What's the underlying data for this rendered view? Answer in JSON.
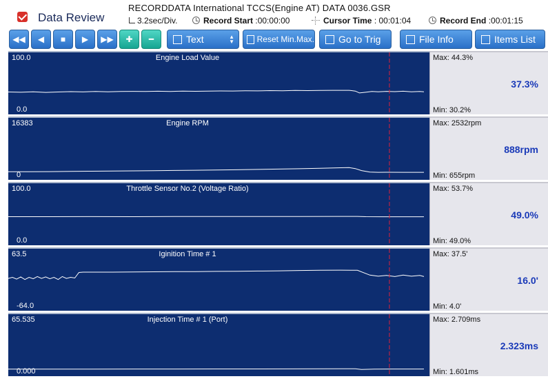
{
  "header": {
    "app_title": "Data Review",
    "filename": "RECORDDATA  International  TCCS(Engine AT)  DATA  0036.GSR",
    "div_value": "3.2sec/Div.",
    "record_start_label": "Record Start",
    "record_start_value": ":00:00:00",
    "cursor_time_label": "Cursor Time",
    "cursor_time_value": ": 00:01:04",
    "record_end_label": "Record End",
    "record_end_value": ":00:01:15"
  },
  "toolbar": {
    "text_label": "Text",
    "reset_label": "Reset Min.Max.",
    "goto_label": "Go to Trig",
    "fileinfo_label": "File Info",
    "items_label": "Items List",
    "rewind_glyph": "◀◀",
    "back_glyph": "◀",
    "stop_glyph": "■",
    "play_glyph": "▶",
    "ff_glyph": "▶▶",
    "plus_glyph": "✚",
    "minus_glyph": "━"
  },
  "colors": {
    "plot_bg": "#0d2d70",
    "trace": "#ffffff",
    "cursor": "#e0203a",
    "value": "#1a3ab8"
  },
  "cursor_fraction": 0.905,
  "panels": [
    {
      "title": "Engine Load Value",
      "ymax": "100.0",
      "ymin": "0.0",
      "smax": "Max:  44.3%",
      "smin": "Min:   30.2%",
      "current": "37.3%",
      "series": [
        [
          0,
          36
        ],
        [
          0.03,
          35.5
        ],
        [
          0.06,
          36.4
        ],
        [
          0.09,
          35.2
        ],
        [
          0.12,
          36
        ],
        [
          0.15,
          36.8
        ],
        [
          0.18,
          36.2
        ],
        [
          0.21,
          37
        ],
        [
          0.24,
          36.3
        ],
        [
          0.27,
          37.1
        ],
        [
          0.3,
          37.4
        ],
        [
          0.33,
          37
        ],
        [
          0.36,
          37.6
        ],
        [
          0.39,
          37.2
        ],
        [
          0.42,
          37.8
        ],
        [
          0.45,
          37.5
        ],
        [
          0.48,
          38
        ],
        [
          0.51,
          38.3
        ],
        [
          0.54,
          38.1
        ],
        [
          0.57,
          38.6
        ],
        [
          0.6,
          38.4
        ],
        [
          0.63,
          38.9
        ],
        [
          0.66,
          38.7
        ],
        [
          0.69,
          39.2
        ],
        [
          0.72,
          39
        ],
        [
          0.75,
          39.4
        ],
        [
          0.78,
          39.6
        ],
        [
          0.8,
          39.5
        ],
        [
          0.82,
          39.6
        ],
        [
          0.835,
          38
        ],
        [
          0.845,
          34
        ],
        [
          0.86,
          35.5
        ],
        [
          0.875,
          37
        ],
        [
          0.89,
          36.5
        ],
        [
          0.91,
          37.3
        ],
        [
          0.93,
          36.8
        ],
        [
          0.95,
          37.6
        ],
        [
          0.97,
          36.5
        ],
        [
          0.99,
          37.2
        ],
        [
          1,
          36.4
        ]
      ],
      "range": [
        0,
        100
      ]
    },
    {
      "title": "Engine RPM",
      "ymax": "16383",
      "ymin": "0",
      "smax": "Max:  2532rpm",
      "smin": "Min:    655rpm",
      "current": "888rpm",
      "series": [
        [
          0,
          900
        ],
        [
          0.05,
          880
        ],
        [
          0.1,
          950
        ],
        [
          0.15,
          1000
        ],
        [
          0.2,
          1080
        ],
        [
          0.25,
          1130
        ],
        [
          0.3,
          1200
        ],
        [
          0.35,
          1280
        ],
        [
          0.4,
          1350
        ],
        [
          0.45,
          1430
        ],
        [
          0.5,
          1520
        ],
        [
          0.55,
          1600
        ],
        [
          0.6,
          1700
        ],
        [
          0.65,
          1820
        ],
        [
          0.7,
          1950
        ],
        [
          0.75,
          2100
        ],
        [
          0.8,
          2280
        ],
        [
          0.82,
          2350
        ],
        [
          0.835,
          2000
        ],
        [
          0.85,
          1300
        ],
        [
          0.87,
          800
        ],
        [
          0.89,
          700
        ],
        [
          0.91,
          720
        ],
        [
          0.95,
          690
        ],
        [
          1,
          700
        ]
      ],
      "range": [
        0,
        16383
      ]
    },
    {
      "title": "Throttle Sensor No.2 (Voltage Ratio)",
      "ymax": "100.0",
      "ymin": "0.0",
      "smax": "Max:  53.7%",
      "smin": "Min:   49.0%",
      "current": "49.0%",
      "series": [
        [
          0,
          49.2
        ],
        [
          0.1,
          49.3
        ],
        [
          0.2,
          49.4
        ],
        [
          0.3,
          49.3
        ],
        [
          0.4,
          49.6
        ],
        [
          0.5,
          49.5
        ],
        [
          0.6,
          49.6
        ],
        [
          0.7,
          49.7
        ],
        [
          0.8,
          49.8
        ],
        [
          0.84,
          49.8
        ],
        [
          0.86,
          49.2
        ],
        [
          0.9,
          49.1
        ],
        [
          1,
          49.1
        ]
      ],
      "range": [
        0,
        100
      ]
    },
    {
      "title": "Iginition Time # 1",
      "ymax": "63.5",
      "ymin": "-64.0",
      "smax": "Max:  37.5'",
      "smin": "Min:    4.0'",
      "current": "16.0'",
      "series": [
        [
          0,
          9
        ],
        [
          0.01,
          12
        ],
        [
          0.02,
          7
        ],
        [
          0.03,
          13
        ],
        [
          0.04,
          6
        ],
        [
          0.05,
          12
        ],
        [
          0.06,
          8
        ],
        [
          0.07,
          14
        ],
        [
          0.08,
          9
        ],
        [
          0.09,
          13
        ],
        [
          0.1,
          8
        ],
        [
          0.11,
          12
        ],
        [
          0.12,
          6
        ],
        [
          0.13,
          14
        ],
        [
          0.14,
          9
        ],
        [
          0.15,
          12
        ],
        [
          0.16,
          10
        ],
        [
          0.17,
          25
        ],
        [
          0.18,
          26
        ],
        [
          0.25,
          26
        ],
        [
          0.3,
          26.5
        ],
        [
          0.35,
          27
        ],
        [
          0.4,
          27.5
        ],
        [
          0.45,
          27.5
        ],
        [
          0.5,
          28
        ],
        [
          0.55,
          28.5
        ],
        [
          0.6,
          29
        ],
        [
          0.65,
          29.5
        ],
        [
          0.7,
          30.5
        ],
        [
          0.75,
          31
        ],
        [
          0.8,
          31.5
        ],
        [
          0.84,
          31
        ],
        [
          0.87,
          18
        ],
        [
          0.89,
          15
        ],
        [
          0.91,
          17
        ],
        [
          0.93,
          14
        ],
        [
          0.95,
          18
        ],
        [
          0.97,
          15
        ],
        [
          0.99,
          17
        ],
        [
          1,
          14
        ]
      ],
      "range": [
        -64,
        63.5
      ]
    },
    {
      "title": "Injection Time # 1 (Port)",
      "ymax": "65.535",
      "ymin": "0.000",
      "smax": "Max: 2.709ms",
      "smin": "Min:  1.601ms",
      "current": "2.323ms",
      "series": [
        [
          0,
          2.2
        ],
        [
          0.1,
          2.2
        ],
        [
          0.2,
          2.25
        ],
        [
          0.3,
          2.3
        ],
        [
          0.4,
          2.35
        ],
        [
          0.5,
          2.4
        ],
        [
          0.6,
          2.45
        ],
        [
          0.7,
          2.55
        ],
        [
          0.8,
          2.65
        ],
        [
          0.835,
          2.7
        ],
        [
          0.85,
          1.6
        ],
        [
          0.88,
          2.1
        ],
        [
          0.92,
          2.3
        ],
        [
          1,
          2.3
        ]
      ],
      "range": [
        0,
        65.535
      ]
    }
  ]
}
